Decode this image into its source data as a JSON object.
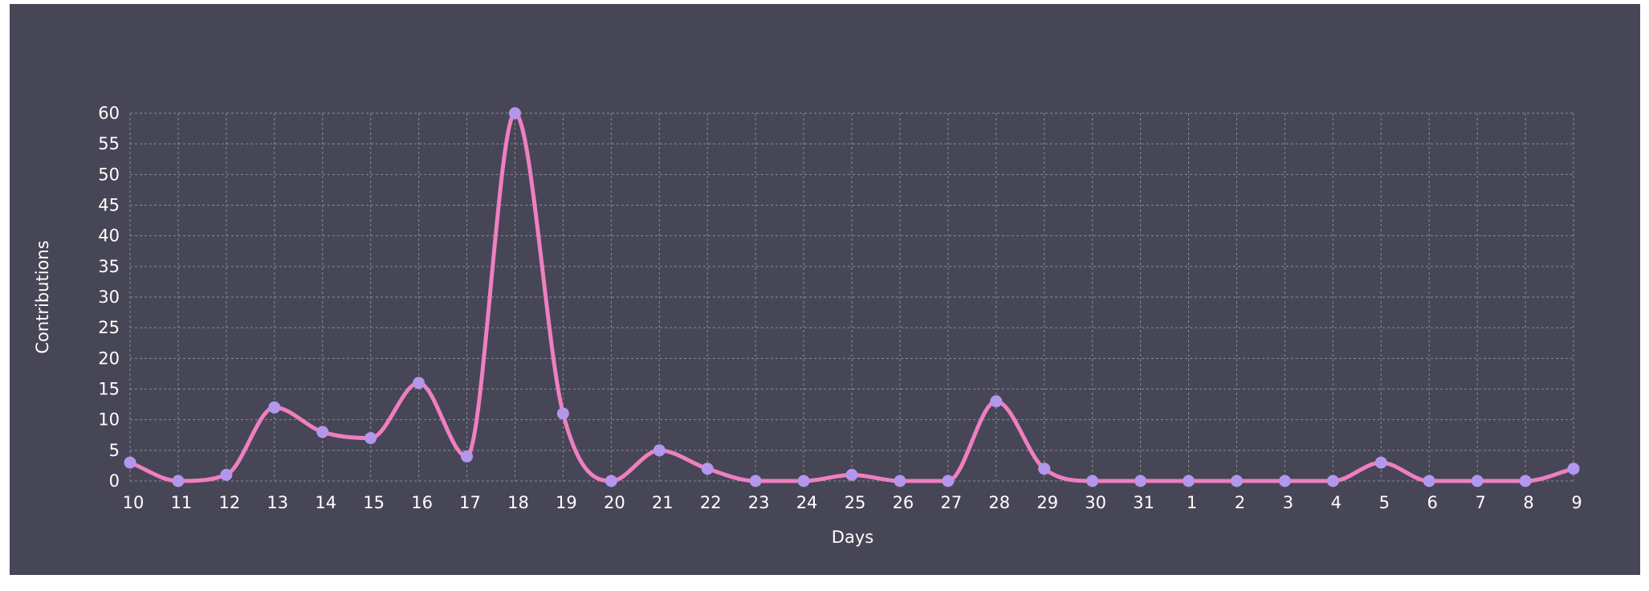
{
  "colors": {
    "background": "#464657",
    "line": "#ef7fbf",
    "point": "#b497ec",
    "grid": "#8a8a98",
    "text": "#ffffff"
  },
  "chart_data": {
    "type": "line",
    "curve": "smooth",
    "xlabel": "Days",
    "ylabel": "Contributions",
    "ylim": [
      0,
      60
    ],
    "y_ticks": [
      0,
      5,
      10,
      15,
      20,
      25,
      30,
      35,
      40,
      45,
      50,
      55,
      60
    ],
    "grid": true,
    "categories": [
      "10",
      "11",
      "12",
      "13",
      "14",
      "15",
      "16",
      "17",
      "18",
      "19",
      "20",
      "21",
      "22",
      "23",
      "24",
      "25",
      "26",
      "27",
      "28",
      "29",
      "30",
      "31",
      "1",
      "2",
      "3",
      "4",
      "5",
      "6",
      "7",
      "8",
      "9"
    ],
    "series": [
      {
        "values": [
          3,
          0,
          1,
          12,
          8,
          7,
          16,
          4,
          60,
          11,
          0,
          5,
          2,
          0,
          0,
          1,
          0,
          0,
          13,
          2,
          0,
          0,
          0,
          0,
          0,
          0,
          3,
          0,
          0,
          0,
          2
        ]
      }
    ]
  }
}
